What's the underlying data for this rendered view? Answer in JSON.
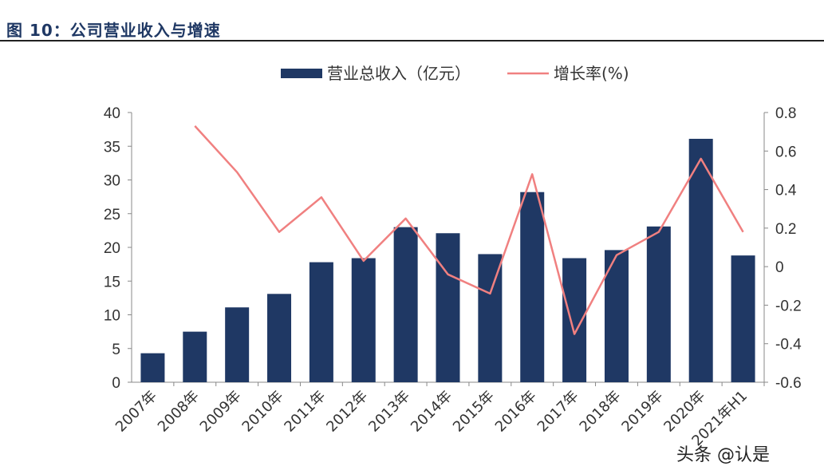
{
  "figure": {
    "title": "图 10：公司营业收入与增速",
    "watermark": "头条 @认是"
  },
  "chart_data": {
    "type": "bar",
    "categories": [
      "2007年",
      "2008年",
      "2009年",
      "2010年",
      "2011年",
      "2012年",
      "2013年",
      "2014年",
      "2015年",
      "2016年",
      "2017年",
      "2018年",
      "2019年",
      "2020年",
      "2021年H1"
    ],
    "series": [
      {
        "name": "营业总收入（亿元）",
        "type": "bar",
        "axis": "left",
        "color": "#1f3864",
        "values": [
          4.3,
          7.5,
          11.1,
          13.1,
          17.8,
          18.4,
          23.0,
          22.1,
          19.0,
          28.2,
          18.4,
          19.6,
          23.1,
          36.1,
          18.8
        ]
      },
      {
        "name": "增长率(%)",
        "type": "line",
        "axis": "right",
        "color": "#f08080",
        "values": [
          null,
          0.73,
          0.49,
          0.18,
          0.36,
          0.03,
          0.25,
          -0.04,
          -0.14,
          0.48,
          -0.35,
          0.06,
          0.18,
          0.56,
          0.18
        ]
      }
    ],
    "yleft": {
      "min": 0,
      "max": 40,
      "step": 5,
      "ticks": [
        "0",
        "5",
        "10",
        "15",
        "20",
        "25",
        "30",
        "35",
        "40"
      ]
    },
    "yright": {
      "min": -0.6,
      "max": 0.8,
      "step": 0.2,
      "ticks": [
        "-0.6",
        "-0.4",
        "-0.2",
        "0",
        "0.2",
        "0.4",
        "0.6",
        "0.8"
      ]
    },
    "legend_position": "top-center",
    "grid": false
  }
}
